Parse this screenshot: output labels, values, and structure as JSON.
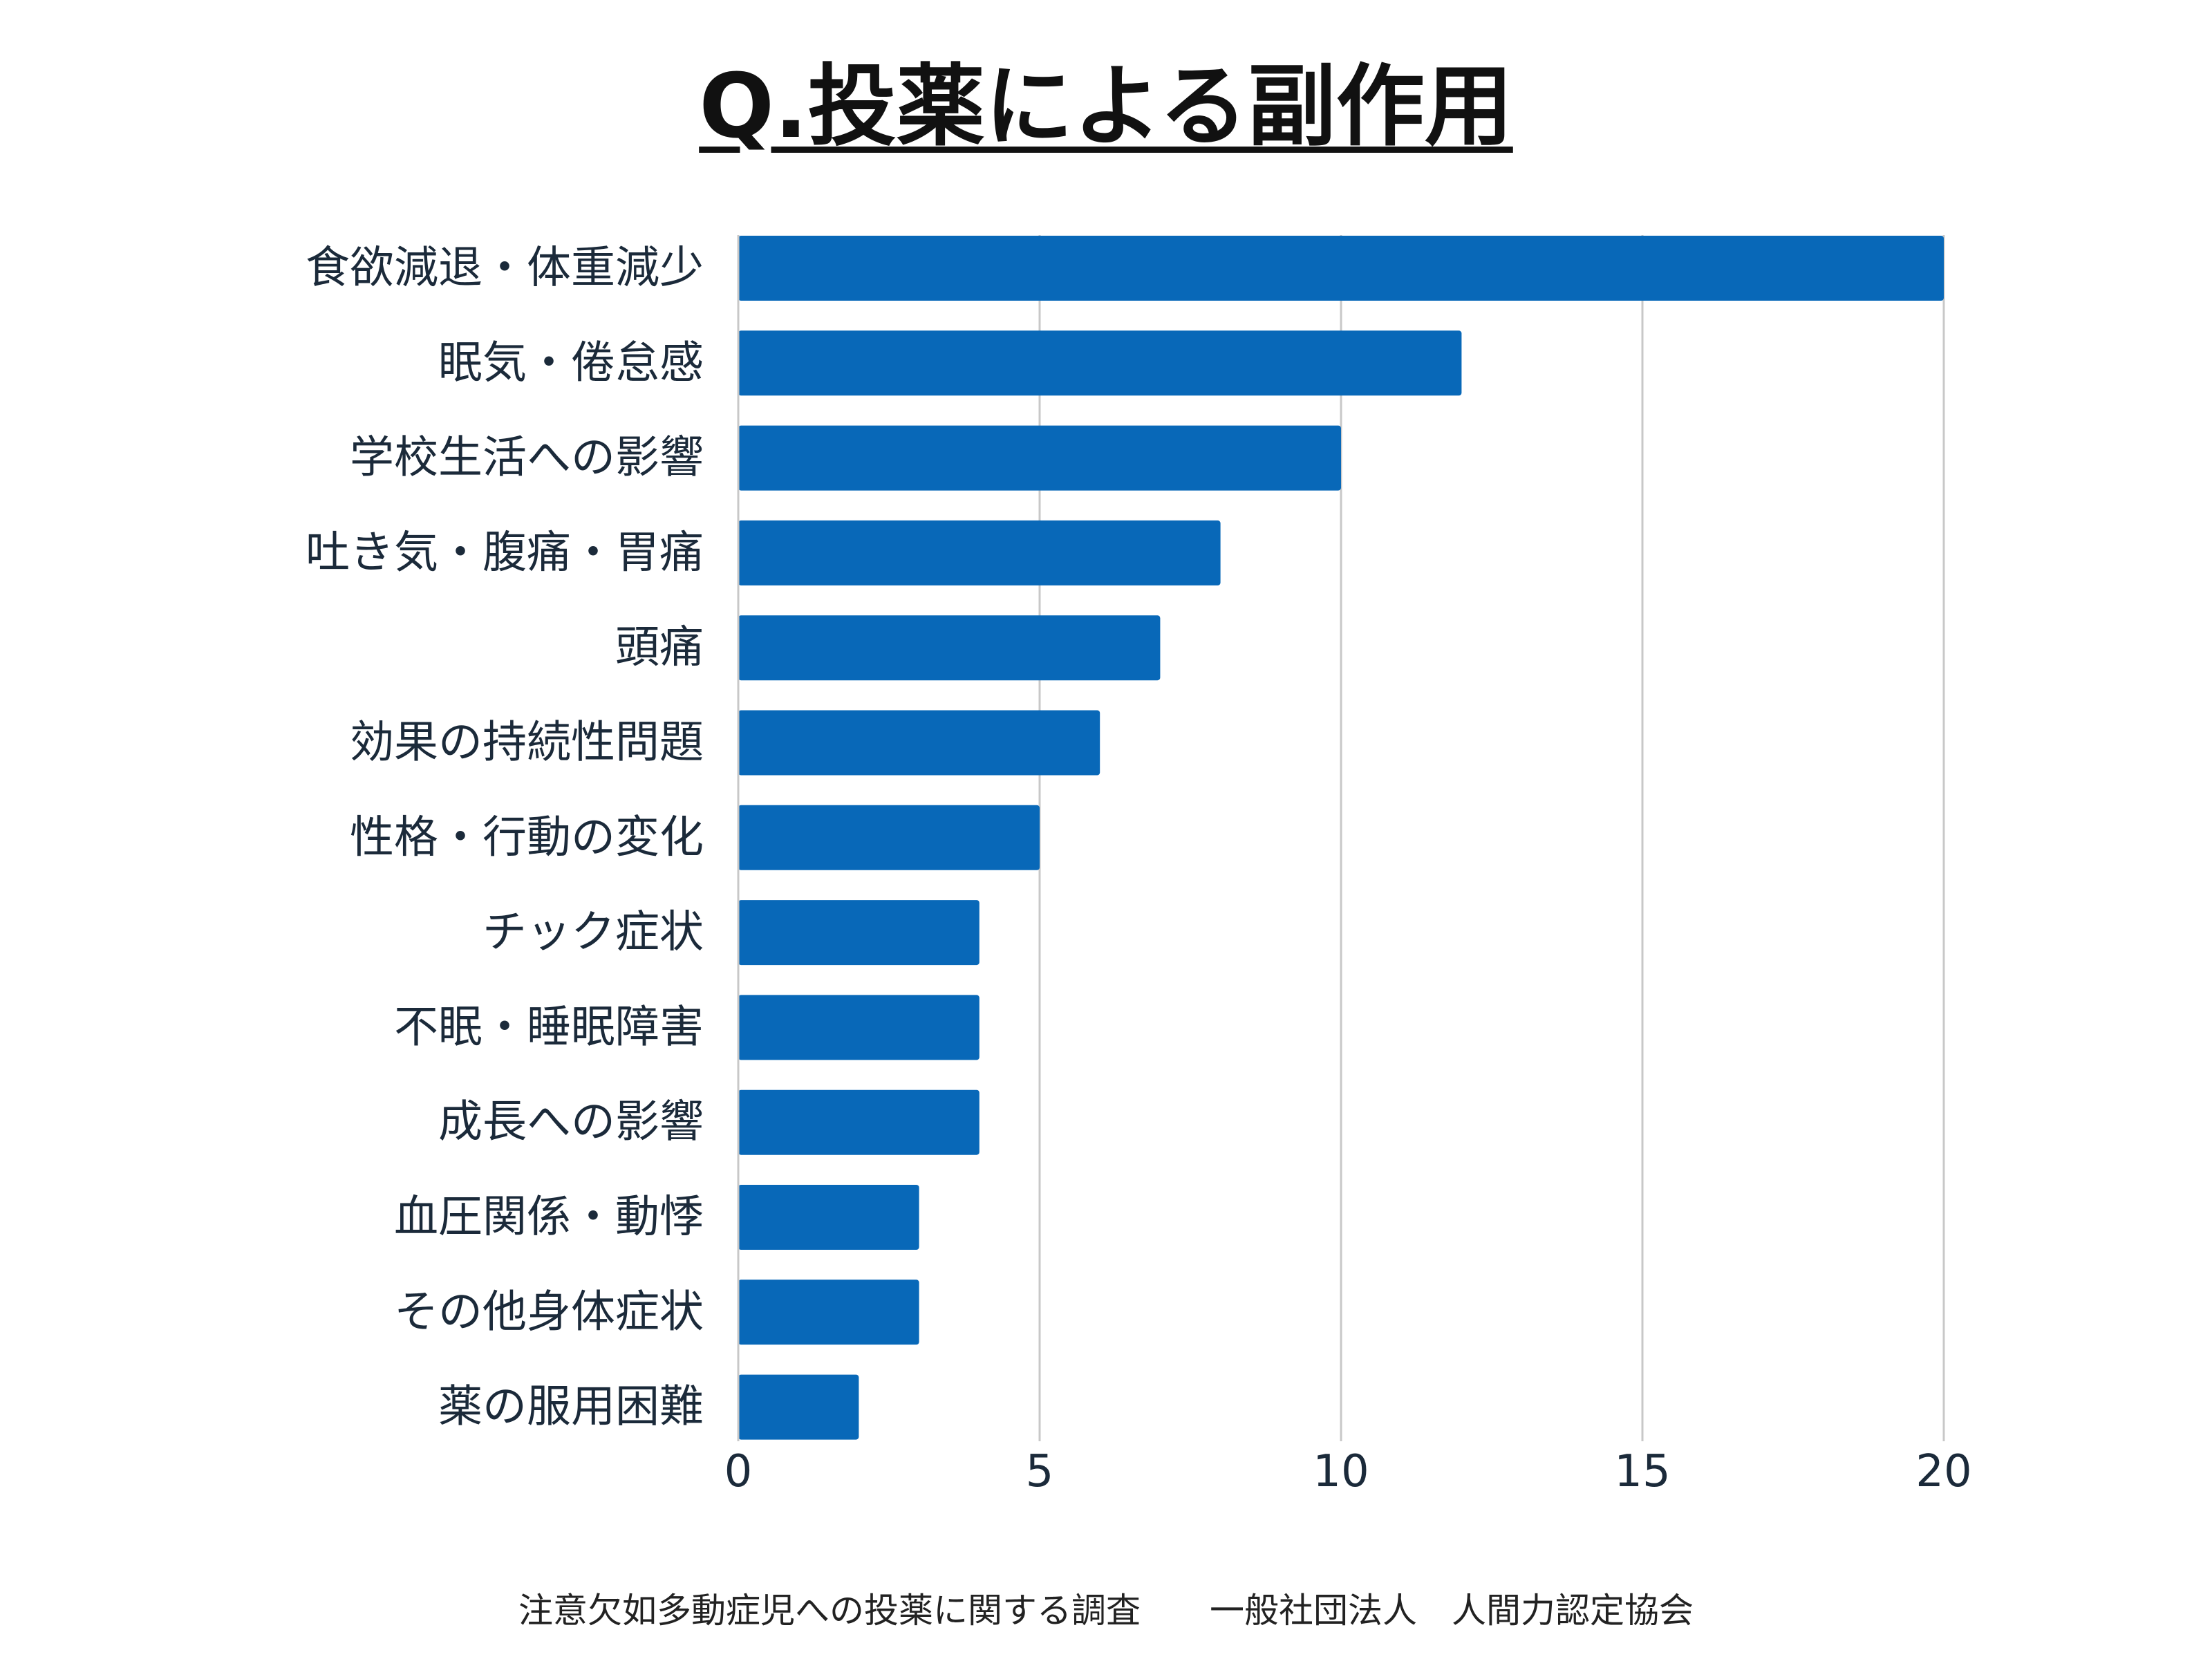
{
  "title": "Q.投薬による副作用",
  "footer": "注意欠如多動症児への投薬に関する調査　　一般社団法人　人間力認定協会",
  "colors": {
    "bar": "#0868b8",
    "grid": "#c8c8c8",
    "text": "#1b2a3a"
  },
  "chart_data": {
    "type": "bar",
    "orientation": "horizontal",
    "categories": [
      "食欲減退・体重減少",
      "眠気・倦怠感",
      "学校生活への影響",
      "吐き気・腹痛・胃痛",
      "頭痛",
      "効果の持続性問題",
      "性格・行動の変化",
      "チック症状",
      "不眠・睡眠障害",
      "成長への影響",
      "血圧関係・動悸",
      "その他身体症状",
      "薬の服用困難"
    ],
    "values": [
      20,
      12,
      10,
      8,
      7,
      6,
      5,
      4,
      4,
      4,
      3,
      3,
      2
    ],
    "xlim": [
      0,
      20
    ],
    "xticks": [
      "0",
      "5",
      "10",
      "15",
      "20"
    ],
    "grid": true,
    "legend": "none"
  }
}
